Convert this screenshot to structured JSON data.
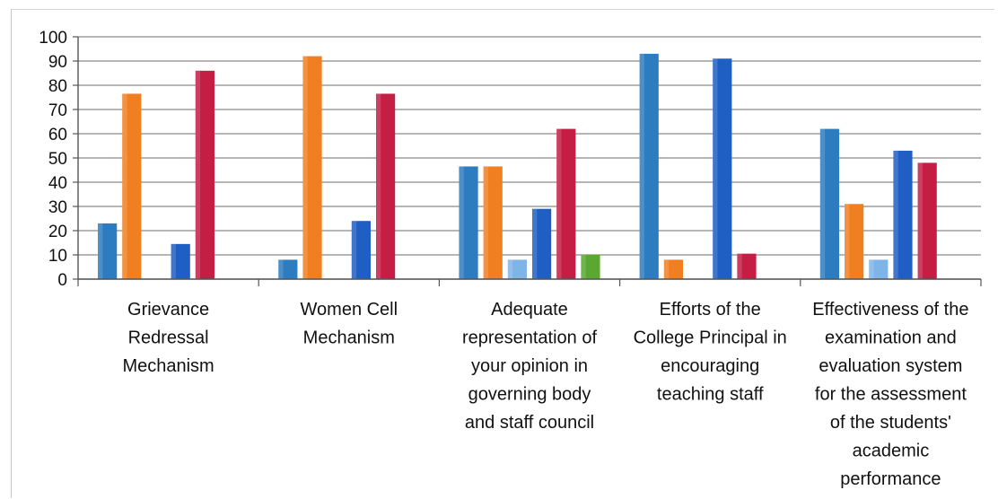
{
  "chart_data": {
    "type": "bar",
    "title": "",
    "xlabel": "",
    "ylabel": "",
    "ylim": [
      0,
      100
    ],
    "yticks": [
      0,
      10,
      20,
      30,
      40,
      50,
      60,
      70,
      80,
      90,
      100
    ],
    "grid": true,
    "legend": "none",
    "categories": [
      [
        "Grievance",
        "Redressal",
        "Mechanism"
      ],
      [
        "Women Cell",
        "Mechanism"
      ],
      [
        "Adequate",
        "representation of",
        "your opinion in",
        "governing body",
        "and staff council"
      ],
      [
        "Efforts of the",
        "College Principal in",
        "encouraging",
        "teaching staff"
      ],
      [
        "Effectiveness of the",
        "examination and",
        "evaluation system",
        "for the assessment",
        "of the students'",
        "academic",
        "performance"
      ]
    ],
    "series": [
      {
        "color": "#2e7cc0",
        "values": [
          23,
          8,
          46.5,
          93,
          62
        ]
      },
      {
        "color": "#f07f22",
        "values": [
          76.5,
          92,
          46.5,
          8,
          31
        ]
      },
      {
        "color": "#7fb4e8",
        "values": [
          0,
          0,
          8,
          0,
          8
        ]
      },
      {
        "color": "#1f5fc4",
        "values": [
          14.5,
          24,
          29,
          91,
          53
        ]
      },
      {
        "color": "#c41e45",
        "values": [
          86,
          76.5,
          62,
          10.5,
          48
        ]
      },
      {
        "color": "#5aa832",
        "values": [
          0,
          0,
          10,
          0,
          0
        ]
      }
    ]
  }
}
